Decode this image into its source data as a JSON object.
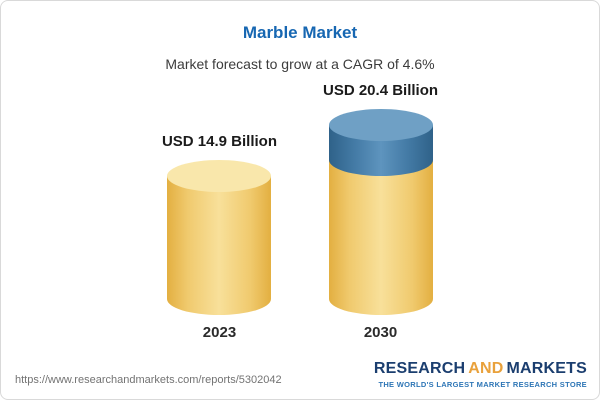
{
  "header": {
    "title": "Marble Market",
    "subtitle": "Market forecast to grow at a CAGR of 4.6%"
  },
  "chart_data": {
    "type": "bar",
    "title": "Marble Market",
    "subtitle": "Market forecast to grow at a CAGR of 4.6%",
    "categories": [
      "2023",
      "2030"
    ],
    "values": [
      14.9,
      20.4
    ],
    "value_labels": [
      "USD 14.9 Billion",
      "USD 20.4 Billion"
    ],
    "unit": "USD Billion",
    "cagr": "4.6%",
    "ylim": [
      0,
      20.4
    ],
    "legend": "none",
    "grid": "off",
    "colors": {
      "bar_2023": "#F0CA6E",
      "bar_2030_base": "#F0CA6E",
      "bar_2030_growth": "#447BA6",
      "title": "#1767B2"
    }
  },
  "footer": {
    "url": "https://www.researchandmarkets.com/reports/5302042",
    "logo": {
      "research": "RESEARCH",
      "and": "AND",
      "markets": "MARKETS",
      "tagline": "THE WORLD'S LARGEST MARKET RESEARCH STORE"
    }
  }
}
